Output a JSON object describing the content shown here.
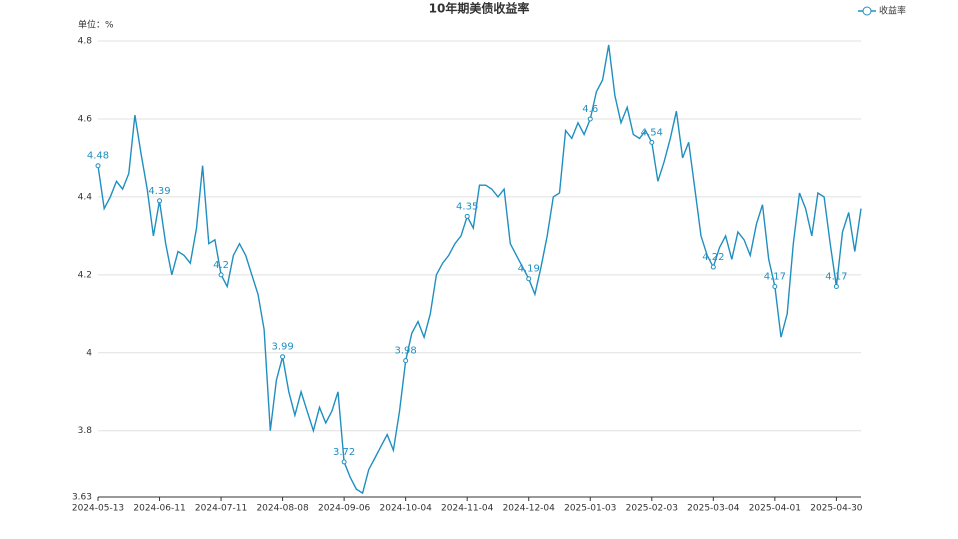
{
  "chart_data": {
    "type": "line",
    "title": "10年期美债收益率",
    "y_unit": "单位：%",
    "categories": [
      "2024-05-13",
      null,
      null,
      null,
      null,
      null,
      null,
      null,
      null,
      null,
      "2024-06-11",
      null,
      null,
      null,
      null,
      null,
      null,
      null,
      null,
      null,
      "2024-07-11",
      null,
      null,
      null,
      null,
      null,
      null,
      null,
      null,
      null,
      "2024-08-08",
      null,
      null,
      null,
      null,
      null,
      null,
      null,
      null,
      null,
      "2024-09-06",
      null,
      null,
      null,
      null,
      null,
      null,
      null,
      null,
      null,
      "2024-10-04",
      null,
      null,
      null,
      null,
      null,
      null,
      null,
      null,
      null,
      "2024-11-04",
      null,
      null,
      null,
      null,
      null,
      null,
      null,
      null,
      null,
      "2024-12-04",
      null,
      null,
      null,
      null,
      null,
      null,
      null,
      null,
      null,
      "2025-01-03",
      null,
      null,
      null,
      null,
      null,
      null,
      null,
      null,
      null,
      "2025-02-03",
      null,
      null,
      null,
      null,
      null,
      null,
      null,
      null,
      null,
      "2025-03-04",
      null,
      null,
      null,
      null,
      null,
      null,
      null,
      null,
      null,
      "2025-04-01",
      null,
      null,
      null,
      null,
      null,
      null,
      null,
      null,
      null,
      "2025-04-30",
      null,
      null,
      null,
      null
    ],
    "series": [
      {
        "name": "收益率",
        "color": "#1f8fc0",
        "values": [
          4.48,
          4.37,
          4.4,
          4.44,
          4.42,
          4.46,
          4.61,
          4.51,
          4.42,
          4.3,
          4.39,
          4.28,
          4.2,
          4.26,
          4.25,
          4.23,
          4.32,
          4.48,
          4.28,
          4.29,
          4.2,
          4.17,
          4.25,
          4.28,
          4.25,
          4.2,
          4.15,
          4.06,
          3.8,
          3.93,
          3.99,
          3.9,
          3.84,
          3.9,
          3.85,
          3.8,
          3.86,
          3.82,
          3.85,
          3.9,
          3.72,
          3.68,
          3.65,
          3.64,
          3.7,
          3.73,
          3.76,
          3.79,
          3.75,
          3.85,
          3.98,
          4.05,
          4.08,
          4.04,
          4.1,
          4.2,
          4.23,
          4.25,
          4.28,
          4.3,
          4.35,
          4.32,
          4.43,
          4.43,
          4.42,
          4.4,
          4.42,
          4.28,
          4.25,
          4.22,
          4.19,
          4.15,
          4.22,
          4.3,
          4.4,
          4.41,
          4.57,
          4.55,
          4.59,
          4.56,
          4.6,
          4.67,
          4.7,
          4.79,
          4.66,
          4.59,
          4.63,
          4.56,
          4.55,
          4.57,
          4.54,
          4.44,
          4.49,
          4.55,
          4.62,
          4.5,
          4.54,
          4.42,
          4.3,
          4.25,
          4.22,
          4.27,
          4.3,
          4.24,
          4.31,
          4.29,
          4.25,
          4.33,
          4.38,
          4.24,
          4.17,
          4.04,
          4.1,
          4.28,
          4.41,
          4.37,
          4.3,
          4.41,
          4.4,
          4.28,
          4.17,
          4.31,
          4.36,
          4.26,
          4.37
        ]
      }
    ],
    "label_every": 10,
    "ylim": [
      3.63,
      4.8
    ],
    "yticks": [
      3.63,
      3.8,
      4,
      4.2,
      4.4,
      4.6,
      4.8
    ],
    "grid": true,
    "legend": "top-right"
  }
}
